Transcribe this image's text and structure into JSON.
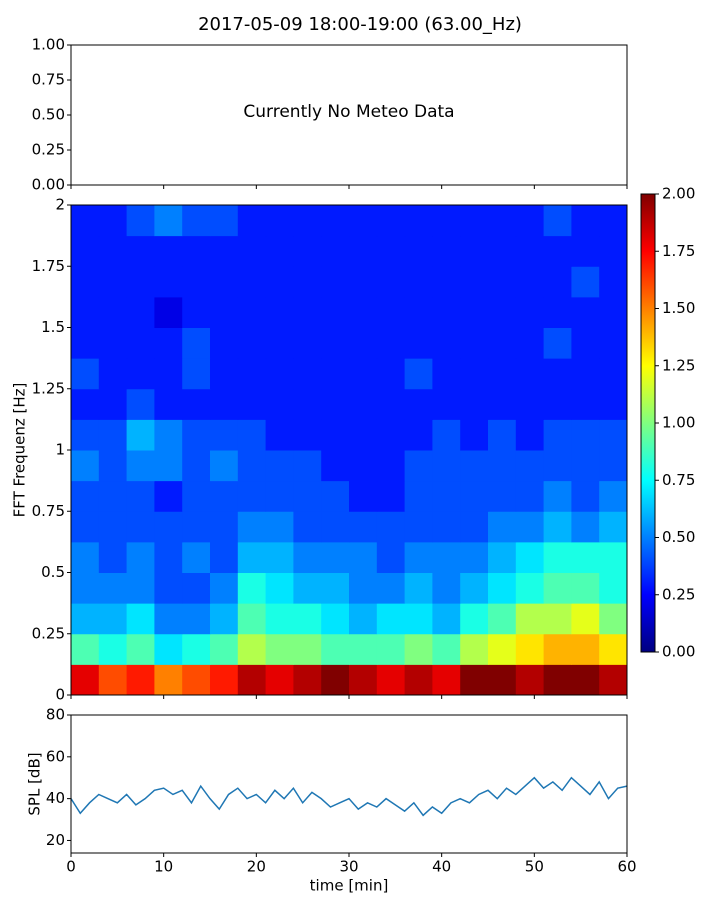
{
  "chart_data": [
    {
      "type": "blank",
      "title": "2017-05-09 18:00-19:00 (63.00_Hz)",
      "annotation": "Currently No Meteo Data",
      "xlim": [
        0,
        60
      ],
      "xticks": [
        0,
        10,
        20,
        30,
        40,
        50,
        60
      ],
      "ylim": [
        0,
        1
      ],
      "yticks": [
        {
          "value": 0,
          "label": "0.00"
        },
        {
          "value": 0.25,
          "label": "0.25"
        },
        {
          "value": 0.5,
          "label": "0.50"
        },
        {
          "value": 0.75,
          "label": "0.75"
        },
        {
          "value": 1,
          "label": "1.00"
        }
      ]
    },
    {
      "type": "heatmap",
      "ylabel": "FFT Frequenz [Hz]",
      "colormap": "jet",
      "xlim": [
        0,
        60
      ],
      "xticks": [
        0,
        10,
        20,
        30,
        40,
        50,
        60
      ],
      "ylim": [
        0,
        2
      ],
      "yticks": [
        0,
        0.25,
        0.5,
        0.75,
        1,
        1.25,
        1.5,
        1.75,
        2
      ],
      "zlim": [
        0,
        2
      ],
      "zticks": [
        {
          "value": 0,
          "label": "0.00"
        },
        {
          "value": 0.25,
          "label": "0.25"
        },
        {
          "value": 0.5,
          "label": "0.50"
        },
        {
          "value": 0.75,
          "label": "0.75"
        },
        {
          "value": 1,
          "label": "1.00"
        },
        {
          "value": 1.25,
          "label": "1.25"
        },
        {
          "value": 1.5,
          "label": "1.50"
        },
        {
          "value": 1.75,
          "label": "1.75"
        },
        {
          "value": 2,
          "label": "2.00"
        }
      ],
      "z": [
        [
          1.8,
          1.6,
          1.7,
          1.5,
          1.6,
          1.7,
          1.9,
          1.8,
          1.9,
          2.0,
          1.9,
          1.8,
          1.9,
          1.8,
          2.0,
          2.0,
          1.9,
          2.0,
          2.0,
          1.9
        ],
        [
          0.9,
          0.8,
          0.9,
          0.7,
          0.8,
          0.9,
          1.1,
          1.0,
          1.0,
          0.9,
          0.9,
          0.9,
          1.0,
          0.9,
          1.1,
          1.2,
          1.3,
          1.4,
          1.4,
          1.3
        ],
        [
          0.6,
          0.6,
          0.7,
          0.5,
          0.5,
          0.6,
          0.9,
          0.8,
          0.8,
          0.7,
          0.6,
          0.7,
          0.7,
          0.6,
          0.8,
          0.9,
          1.1,
          1.1,
          1.2,
          1.0
        ],
        [
          0.5,
          0.5,
          0.5,
          0.4,
          0.4,
          0.5,
          0.8,
          0.7,
          0.6,
          0.6,
          0.5,
          0.5,
          0.6,
          0.5,
          0.6,
          0.7,
          0.8,
          0.9,
          0.9,
          0.8
        ],
        [
          0.5,
          0.4,
          0.5,
          0.4,
          0.5,
          0.4,
          0.6,
          0.6,
          0.5,
          0.5,
          0.5,
          0.4,
          0.5,
          0.5,
          0.5,
          0.6,
          0.7,
          0.8,
          0.8,
          0.8
        ],
        [
          0.4,
          0.4,
          0.4,
          0.4,
          0.4,
          0.4,
          0.5,
          0.5,
          0.4,
          0.4,
          0.4,
          0.4,
          0.4,
          0.4,
          0.4,
          0.5,
          0.5,
          0.6,
          0.5,
          0.6
        ],
        [
          0.4,
          0.4,
          0.4,
          0.3,
          0.4,
          0.4,
          0.4,
          0.4,
          0.4,
          0.4,
          0.3,
          0.3,
          0.4,
          0.4,
          0.4,
          0.4,
          0.4,
          0.5,
          0.4,
          0.5
        ],
        [
          0.5,
          0.4,
          0.5,
          0.5,
          0.4,
          0.5,
          0.4,
          0.4,
          0.4,
          0.3,
          0.3,
          0.3,
          0.4,
          0.4,
          0.4,
          0.4,
          0.4,
          0.4,
          0.4,
          0.4
        ],
        [
          0.4,
          0.4,
          0.6,
          0.5,
          0.4,
          0.4,
          0.4,
          0.3,
          0.3,
          0.3,
          0.3,
          0.3,
          0.3,
          0.4,
          0.3,
          0.4,
          0.3,
          0.4,
          0.4,
          0.4
        ],
        [
          0.3,
          0.3,
          0.4,
          0.3,
          0.3,
          0.3,
          0.3,
          0.3,
          0.3,
          0.3,
          0.3,
          0.3,
          0.3,
          0.3,
          0.3,
          0.3,
          0.3,
          0.3,
          0.3,
          0.3
        ],
        [
          0.4,
          0.3,
          0.3,
          0.3,
          0.4,
          0.3,
          0.3,
          0.3,
          0.3,
          0.3,
          0.3,
          0.3,
          0.4,
          0.3,
          0.3,
          0.3,
          0.3,
          0.3,
          0.3,
          0.3
        ],
        [
          0.3,
          0.3,
          0.3,
          0.3,
          0.4,
          0.3,
          0.3,
          0.3,
          0.3,
          0.3,
          0.3,
          0.3,
          0.3,
          0.3,
          0.3,
          0.3,
          0.3,
          0.4,
          0.3,
          0.3
        ],
        [
          0.3,
          0.3,
          0.3,
          0.2,
          0.3,
          0.3,
          0.3,
          0.3,
          0.3,
          0.3,
          0.3,
          0.3,
          0.3,
          0.3,
          0.3,
          0.3,
          0.3,
          0.3,
          0.3,
          0.3
        ],
        [
          0.3,
          0.3,
          0.3,
          0.3,
          0.3,
          0.3,
          0.3,
          0.3,
          0.3,
          0.3,
          0.3,
          0.3,
          0.3,
          0.3,
          0.3,
          0.3,
          0.3,
          0.3,
          0.4,
          0.3
        ],
        [
          0.3,
          0.3,
          0.3,
          0.3,
          0.3,
          0.3,
          0.3,
          0.3,
          0.3,
          0.3,
          0.3,
          0.3,
          0.3,
          0.3,
          0.3,
          0.3,
          0.3,
          0.3,
          0.3,
          0.3
        ],
        [
          0.3,
          0.3,
          0.4,
          0.5,
          0.4,
          0.4,
          0.3,
          0.3,
          0.3,
          0.3,
          0.3,
          0.3,
          0.3,
          0.3,
          0.3,
          0.3,
          0.3,
          0.4,
          0.3,
          0.3
        ]
      ]
    },
    {
      "type": "line",
      "xlabel": "time [min]",
      "ylabel": "SPL [dB]",
      "color": "#1f77b4",
      "xlim": [
        0,
        60
      ],
      "xticks": [
        0,
        10,
        20,
        30,
        40,
        50,
        60
      ],
      "ylim": [
        14,
        80
      ],
      "yticks": [
        20,
        40,
        60,
        80
      ],
      "x": [
        0,
        1,
        2,
        3,
        4,
        5,
        6,
        7,
        8,
        9,
        10,
        11,
        12,
        13,
        14,
        15,
        16,
        17,
        18,
        19,
        20,
        21,
        22,
        23,
        24,
        25,
        26,
        27,
        28,
        29,
        30,
        31,
        32,
        33,
        34,
        35,
        36,
        37,
        38,
        39,
        40,
        41,
        42,
        43,
        44,
        45,
        46,
        47,
        48,
        49,
        50,
        51,
        52,
        53,
        54,
        55,
        56,
        57,
        58,
        59,
        60
      ],
      "values": [
        40,
        33,
        38,
        42,
        40,
        38,
        42,
        37,
        40,
        44,
        45,
        42,
        44,
        38,
        46,
        40,
        35,
        42,
        45,
        40,
        42,
        38,
        44,
        40,
        45,
        38,
        43,
        40,
        36,
        38,
        40,
        35,
        38,
        36,
        40,
        37,
        34,
        38,
        32,
        36,
        33,
        38,
        40,
        38,
        42,
        44,
        40,
        45,
        42,
        46,
        50,
        45,
        48,
        44,
        50,
        46,
        42,
        48,
        40,
        45,
        46
      ]
    }
  ]
}
